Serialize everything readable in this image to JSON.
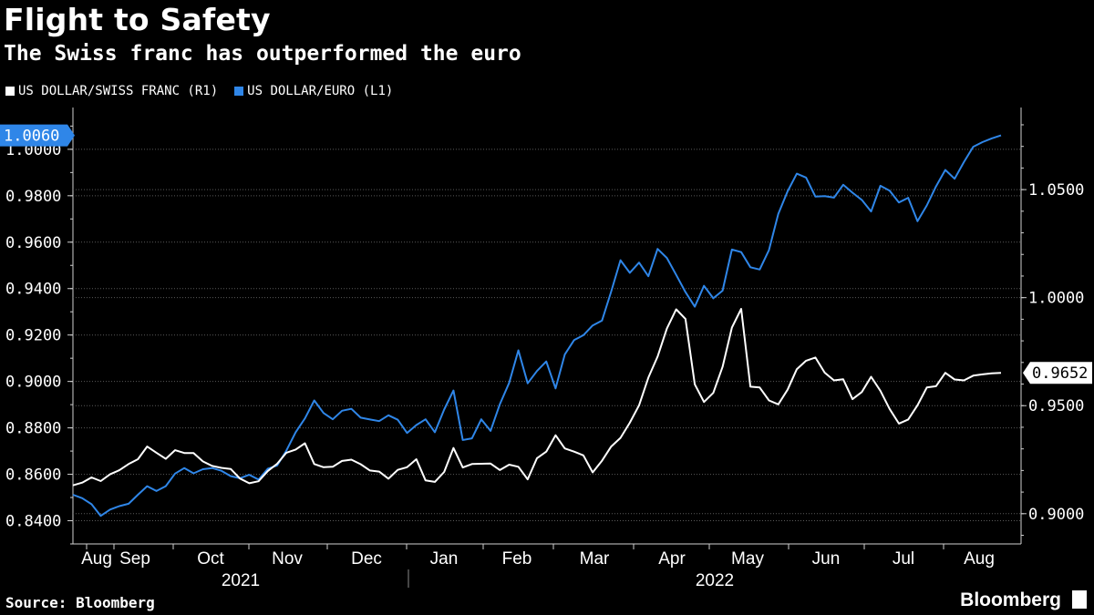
{
  "header": {
    "title": "Flight to Safety",
    "subtitle": "The Swiss franc has outperformed the euro"
  },
  "legend": [
    {
      "label": "US DOLLAR/SWISS FRANC (R1)",
      "color": "#ffffff"
    },
    {
      "label": "US DOLLAR/EURO (L1)",
      "color": "#2f86e8"
    }
  ],
  "footer": {
    "source": "Source: Bloomberg",
    "brand": "Bloomberg"
  },
  "chart_data": {
    "type": "line",
    "title": "Flight to Safety",
    "subtitle": "The Swiss franc has outperformed the euro",
    "x_range": [
      "2021-08-01",
      "2022-08-26"
    ],
    "x_tick_labels": [
      "Aug",
      "Sep",
      "Oct",
      "Nov",
      "Dec",
      "Jan",
      "Feb",
      "Mar",
      "Apr",
      "May",
      "Jun",
      "Jul",
      "Aug"
    ],
    "year_labels": [
      "2021",
      "2022"
    ],
    "left_axis": {
      "series": "US DOLLAR/EURO (L1)",
      "ylim": [
        0.83,
        1.018
      ],
      "ticks": [
        "0.8400",
        "0.8600",
        "0.8800",
        "0.9000",
        "0.9200",
        "0.9400",
        "0.9600",
        "0.9800",
        "1.0000"
      ],
      "last_value_label": "1.0060"
    },
    "right_axis": {
      "series": "US DOLLAR/SWISS FRANC (R1)",
      "ylim": [
        0.886,
        1.088
      ],
      "ticks": [
        "0.9000",
        "0.9500",
        "1.0000",
        "1.0500"
      ],
      "last_value_label": "0.9652"
    },
    "series": [
      {
        "name": "US DOLLAR/EURO (L1)",
        "axis": "left",
        "color": "#2f86e8",
        "t": [
          0.0,
          0.01,
          0.02,
          0.03,
          0.04,
          0.05,
          0.06,
          0.07,
          0.08,
          0.09,
          0.1,
          0.11,
          0.12,
          0.13,
          0.14,
          0.15,
          0.16,
          0.17,
          0.18,
          0.19,
          0.2,
          0.21,
          0.22,
          0.23,
          0.24,
          0.25,
          0.26,
          0.27,
          0.28,
          0.29,
          0.3,
          0.31,
          0.32,
          0.33,
          0.34,
          0.35,
          0.36,
          0.37,
          0.38,
          0.39,
          0.4,
          0.41,
          0.42,
          0.43,
          0.44,
          0.45,
          0.46,
          0.47,
          0.48,
          0.49,
          0.5,
          0.51,
          0.52,
          0.53,
          0.54,
          0.55,
          0.56,
          0.57,
          0.58,
          0.59,
          0.6,
          0.61,
          0.62,
          0.63,
          0.64,
          0.65,
          0.66,
          0.67,
          0.68,
          0.69,
          0.7,
          0.71,
          0.72,
          0.73,
          0.74,
          0.75,
          0.76,
          0.77,
          0.78,
          0.79,
          0.8,
          0.81,
          0.82,
          0.83,
          0.84,
          0.85,
          0.86,
          0.87,
          0.88,
          0.89,
          0.9,
          0.91,
          0.92,
          0.93,
          0.94,
          0.95,
          0.96,
          0.97,
          0.98,
          0.99,
          1.0
        ],
        "values": [
          0.8512,
          0.8497,
          0.8471,
          0.8421,
          0.8448,
          0.8463,
          0.8473,
          0.8512,
          0.8549,
          0.8528,
          0.8549,
          0.8603,
          0.8627,
          0.8604,
          0.8622,
          0.8627,
          0.8615,
          0.8592,
          0.8583,
          0.8598,
          0.8577,
          0.8624,
          0.8638,
          0.8702,
          0.8781,
          0.8841,
          0.8918,
          0.8864,
          0.8837,
          0.8874,
          0.8882,
          0.8844,
          0.8836,
          0.8829,
          0.8854,
          0.8835,
          0.8778,
          0.8812,
          0.8837,
          0.8781,
          0.8879,
          0.8961,
          0.8748,
          0.8755,
          0.8837,
          0.8787,
          0.8902,
          0.8994,
          0.9134,
          0.8992,
          0.9045,
          0.9086,
          0.897,
          0.9116,
          0.9178,
          0.9199,
          0.9241,
          0.9262,
          0.9387,
          0.9522,
          0.9468,
          0.9512,
          0.9453,
          0.9571,
          0.9532,
          0.9459,
          0.9385,
          0.9322,
          0.9412,
          0.9358,
          0.9391,
          0.9568,
          0.9557,
          0.9492,
          0.9482,
          0.9566,
          0.9722,
          0.9819,
          0.9895,
          0.9878,
          0.9796,
          0.9798,
          0.9792,
          0.9847,
          0.9813,
          0.9782,
          0.9732,
          0.9843,
          0.9822,
          0.9771,
          0.9791,
          0.969,
          0.9758,
          0.984,
          0.9911,
          0.9873,
          0.9945,
          1.0011,
          1.0031,
          1.0047,
          1.006
        ]
      },
      {
        "name": "US DOLLAR/SWISS FRANC (R1)",
        "axis": "right",
        "color": "#ffffff",
        "t": [
          0.0,
          0.01,
          0.02,
          0.03,
          0.04,
          0.05,
          0.06,
          0.07,
          0.08,
          0.09,
          0.1,
          0.11,
          0.12,
          0.13,
          0.14,
          0.15,
          0.16,
          0.17,
          0.18,
          0.19,
          0.2,
          0.21,
          0.22,
          0.23,
          0.24,
          0.25,
          0.26,
          0.27,
          0.28,
          0.29,
          0.3,
          0.31,
          0.32,
          0.33,
          0.34,
          0.35,
          0.36,
          0.37,
          0.38,
          0.39,
          0.4,
          0.41,
          0.42,
          0.43,
          0.44,
          0.45,
          0.46,
          0.47,
          0.48,
          0.49,
          0.5,
          0.51,
          0.52,
          0.53,
          0.54,
          0.55,
          0.56,
          0.57,
          0.58,
          0.59,
          0.6,
          0.61,
          0.62,
          0.63,
          0.64,
          0.65,
          0.66,
          0.67,
          0.68,
          0.69,
          0.7,
          0.71,
          0.72,
          0.73,
          0.74,
          0.75,
          0.76,
          0.77,
          0.78,
          0.79,
          0.8,
          0.81,
          0.82,
          0.83,
          0.84,
          0.85,
          0.86,
          0.87,
          0.88,
          0.89,
          0.9,
          0.91,
          0.92,
          0.93,
          0.94,
          0.95,
          0.96,
          0.97,
          0.98,
          0.99,
          1.0
        ],
        "values": [
          0.9131,
          0.9144,
          0.9168,
          0.9151,
          0.9182,
          0.9201,
          0.923,
          0.9252,
          0.9311,
          0.9282,
          0.9254,
          0.9294,
          0.9281,
          0.9281,
          0.9242,
          0.9221,
          0.9212,
          0.9207,
          0.9163,
          0.9141,
          0.915,
          0.9198,
          0.9231,
          0.9282,
          0.9297,
          0.9326,
          0.923,
          0.9215,
          0.9217,
          0.9244,
          0.925,
          0.9229,
          0.92,
          0.9195,
          0.9162,
          0.9203,
          0.9215,
          0.9252,
          0.9154,
          0.9147,
          0.9193,
          0.9304,
          0.9214,
          0.923,
          0.9231,
          0.9232,
          0.9202,
          0.9227,
          0.9217,
          0.9159,
          0.9257,
          0.9287,
          0.9363,
          0.9302,
          0.9287,
          0.927,
          0.9191,
          0.9245,
          0.9311,
          0.9351,
          0.9421,
          0.9502,
          0.963,
          0.9727,
          0.9857,
          0.9946,
          0.9901,
          0.9599,
          0.9517,
          0.9559,
          0.968,
          0.9861,
          0.9948,
          0.9588,
          0.9584,
          0.9524,
          0.9506,
          0.9574,
          0.9669,
          0.9708,
          0.9723,
          0.9653,
          0.9617,
          0.9622,
          0.953,
          0.9563,
          0.9634,
          0.9569,
          0.9485,
          0.9417,
          0.9436,
          0.9502,
          0.9584,
          0.959,
          0.9652,
          0.9621,
          0.9617,
          0.9639,
          0.9645,
          0.965,
          0.9652
        ]
      }
    ]
  }
}
